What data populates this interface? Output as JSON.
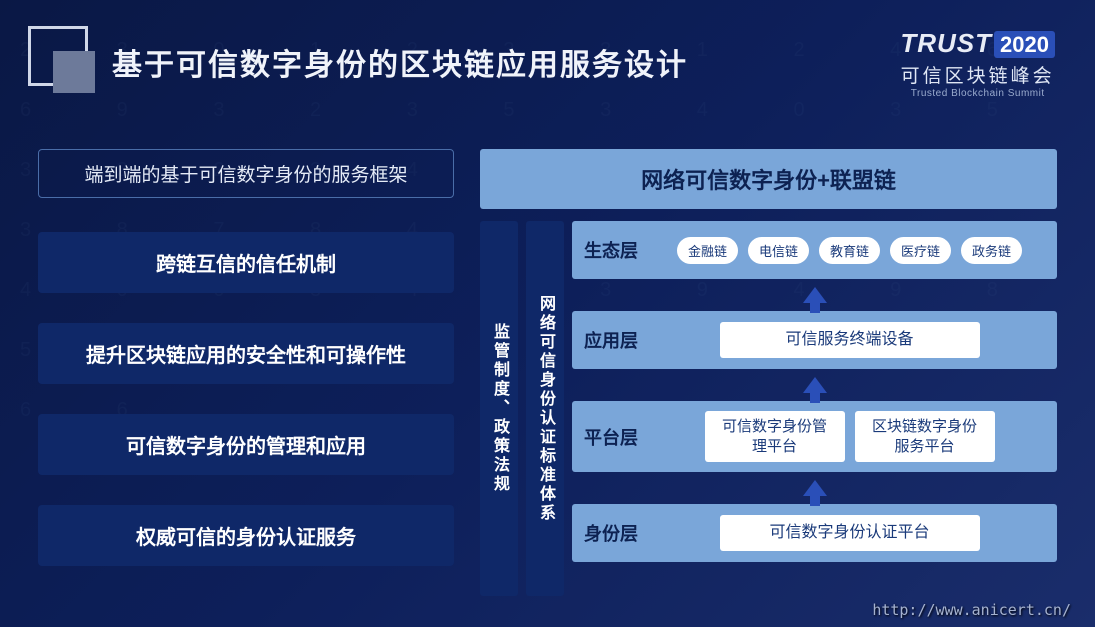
{
  "header": {
    "title": "基于可信数字身份的区块链应用服务设计",
    "logo_trust": "TRUST",
    "logo_year": "2020",
    "logo_cn": "可信区块链峰会",
    "logo_en": "Trusted Blockchain Summit"
  },
  "left": {
    "subtitle": "端到端的基于可信数字身份的服务框架",
    "items": [
      "跨链互信的信任机制",
      "提升区块链应用的安全性和可操作性",
      "可信数字身份的管理和应用",
      "权威可信的身份认证服务"
    ]
  },
  "right": {
    "header": "网络可信数字身份+联盟链",
    "vbar1": "监管制度、政策法规",
    "vbar2": "网络可信身份认证标准体系",
    "layers": {
      "eco": {
        "label": "生态层",
        "pills": [
          "金融链",
          "电信链",
          "教育链",
          "医疗链",
          "政务链"
        ]
      },
      "app": {
        "label": "应用层",
        "box": "可信服务终端设备"
      },
      "platform": {
        "label": "平台层",
        "box1": "可信数字身份管理平台",
        "box2": "区块链数字身份服务平台"
      },
      "identity": {
        "label": "身份层",
        "box": "可信数字身份认证平台"
      }
    }
  },
  "footer_url": "http://www.anicert.cn/",
  "colors": {
    "bg_start": "#0a1845",
    "bg_end": "#1a2d6b",
    "box_dark": "#0f2868",
    "box_light": "#7aa6d9",
    "arrow": "#2a4fb8",
    "text_dark": "#0d2252",
    "text_light": "#ffffff",
    "border": "#4a6da8"
  }
}
